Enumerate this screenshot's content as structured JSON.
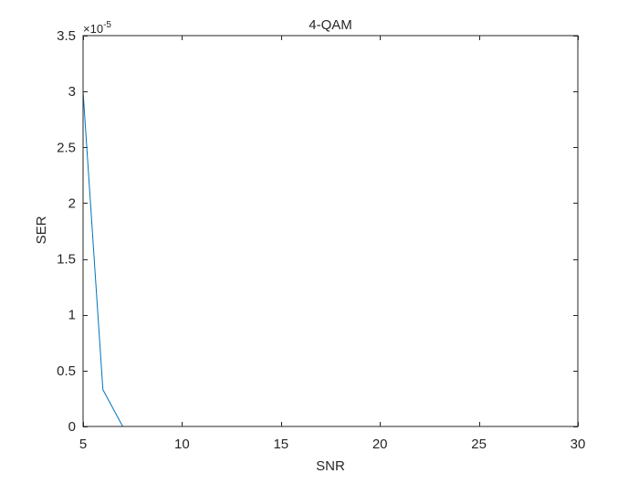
{
  "chart_data": {
    "type": "line",
    "title": "4-QAM",
    "xlabel": "SNR",
    "ylabel": "SER",
    "exponent_base": "×10",
    "exponent_power": "-5",
    "xlim": [
      5,
      30
    ],
    "ylim": [
      0,
      3.5
    ],
    "x_ticks": [
      5,
      10,
      15,
      20,
      25,
      30
    ],
    "y_ticks": [
      0,
      0.5,
      1,
      1.5,
      2,
      2.5,
      3,
      3.5
    ],
    "x_tick_labels": [
      "5",
      "10",
      "15",
      "20",
      "25",
      "30"
    ],
    "y_tick_labels": [
      "0",
      "0.5",
      "1",
      "1.5",
      "2",
      "2.5",
      "3",
      "3.5"
    ],
    "grid": false,
    "series": [
      {
        "color": "#0072bd",
        "x": [
          5,
          6,
          7,
          8,
          9,
          10,
          11,
          12,
          13,
          14,
          15,
          16,
          17,
          18,
          19,
          20,
          21,
          22,
          23,
          24,
          25,
          26,
          27,
          28,
          29,
          30
        ],
        "y": [
          3.0,
          0.33,
          0,
          0,
          0,
          0,
          0,
          0,
          0,
          0,
          0,
          0,
          0,
          0,
          0,
          0,
          0,
          0,
          0,
          0,
          0,
          0,
          0,
          0,
          0,
          0
        ]
      }
    ]
  }
}
